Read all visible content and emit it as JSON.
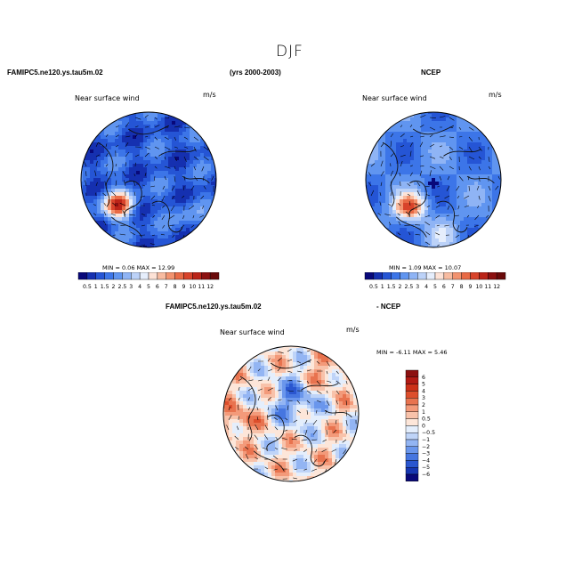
{
  "chart_data": {
    "type": "heatmap",
    "title": "DJF",
    "panels": [
      {
        "id": "model",
        "case": "FAMIPC5.ne120.ys.tau5m.02",
        "period": "(yrs 2000-2003)",
        "field": "Near surface wind",
        "units": "m/s",
        "min": 0.06,
        "max": 12.99,
        "min_label": "MIN =",
        "max_label": "MAX ="
      },
      {
        "id": "obs",
        "case": "NCEP",
        "field": "Near surface wind",
        "units": "m/s",
        "min": 1.09,
        "max": 10.07,
        "min_label": "MIN =",
        "max_label": "MAX ="
      },
      {
        "id": "diff",
        "case": "FAMIPC5.ne120.ys.tau5m.02",
        "case2": "- NCEP",
        "field": "Near surface wind",
        "units": "m/s",
        "min": -6.11,
        "max": 5.46,
        "min_label": "MIN =",
        "max_label": "MAX ="
      }
    ],
    "colorbar_abs": {
      "levels": [
        "0.5",
        "1",
        "1.5",
        "2",
        "2.5",
        "3",
        "4",
        "5",
        "6",
        "7",
        "8",
        "9",
        "10",
        "11",
        "12"
      ],
      "colors": [
        "#08087a",
        "#1530b0",
        "#2555d5",
        "#3c75e8",
        "#6095f0",
        "#8fb4f5",
        "#bcd2f8",
        "#e6eefc",
        "#fde2d6",
        "#f8bba0",
        "#f2926e",
        "#e86a45",
        "#d8432a",
        "#bb2418",
        "#8c1010",
        "#6a0a0a"
      ]
    },
    "colorbar_diff": {
      "levels": [
        "6",
        "5",
        "4",
        "3",
        "2",
        "1",
        "0.5",
        "0",
        "−0.5",
        "−1",
        "−2",
        "−3",
        "−4",
        "−5",
        "−6"
      ],
      "colors": [
        "#8c1010",
        "#b21a14",
        "#cc3018",
        "#dd4e2c",
        "#e8734f",
        "#f39a7a",
        "#f8c2aa",
        "#fde6d9",
        "#e4eefc",
        "#bfd4f8",
        "#93b5f3",
        "#6a96ec",
        "#4676e0",
        "#2a56cf",
        "#1636b2",
        "#08087a"
      ]
    }
  }
}
